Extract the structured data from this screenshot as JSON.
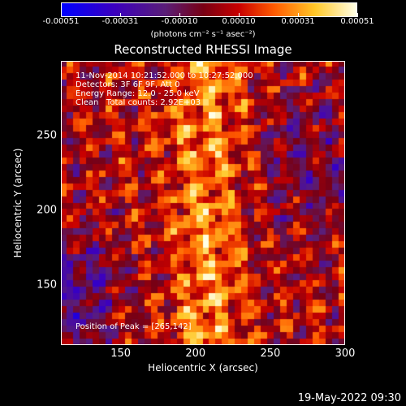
{
  "colorbar": {
    "ticks": [
      "-0.00051",
      "-0.00031",
      "-0.00010",
      "0.00010",
      "0.00031",
      "0.00051"
    ],
    "units": "(photons cm⁻² s⁻¹ asec⁻²)",
    "min": -0.00051,
    "max": 0.00051
  },
  "chart_data": {
    "type": "heatmap",
    "title": "Reconstructed RHESSI Image",
    "xlabel": "Heliocentric X (arcsec)",
    "ylabel": "Heliocentric Y (arcsec)",
    "xlim": [
      110,
      300
    ],
    "ylim": [
      110,
      300
    ],
    "xticks": [
      150,
      200,
      250,
      300
    ],
    "yticks": [
      150,
      200,
      250
    ],
    "info_lines": [
      "11-Nov-2014 10:21:52.000 to 10:27:52.000",
      "Detectors: 3F 6F 9F, Att 0",
      "Energy Range: 12.0 - 25.0 keV",
      "Clean   Total counts: 2.92E+03"
    ],
    "peak_label": "Position of Peak = [265,142]"
  },
  "footer": {
    "timestamp": "19-May-2022 09:30"
  }
}
